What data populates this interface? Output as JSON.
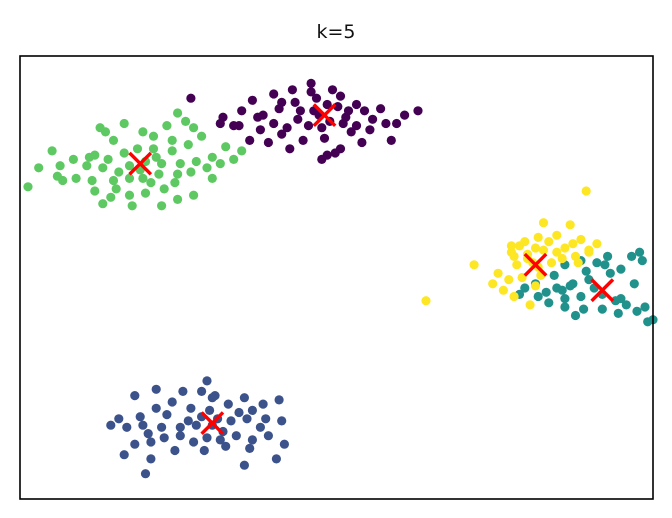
{
  "chart_data": {
    "type": "scatter",
    "title": "k=5",
    "xlabel": "",
    "ylabel": "",
    "xlim": [
      -11.5,
      12.2
    ],
    "ylim": [
      -10.8,
      10.2
    ],
    "grid": false,
    "axis_ticks": false,
    "point_colors": [
      "#440154",
      "#3b528b",
      "#21918c",
      "#5ec962",
      "#fde725"
    ],
    "centroid_marker": "x",
    "centroid_color": "#ff0000",
    "series": [
      {
        "cluster": 0,
        "points": [
          [
            -1.2,
            8.0
          ],
          [
            -0.6,
            8.9
          ],
          [
            0.2,
            8.6
          ],
          [
            0.4,
            7.8
          ],
          [
            -0.3,
            7.4
          ],
          [
            -1.0,
            7.6
          ],
          [
            -1.8,
            7.7
          ],
          [
            -2.4,
            7.4
          ],
          [
            -1.5,
            6.8
          ],
          [
            -0.7,
            6.9
          ],
          [
            0.1,
            7.1
          ],
          [
            0.7,
            7.3
          ],
          [
            1.4,
            7.6
          ],
          [
            2.0,
            7.7
          ],
          [
            2.2,
            7.0
          ],
          [
            1.6,
            6.7
          ],
          [
            0.9,
            6.6
          ],
          [
            -0.1,
            6.3
          ],
          [
            -0.9,
            6.2
          ],
          [
            -1.7,
            6.5
          ],
          [
            -2.5,
            6.7
          ],
          [
            -3.3,
            6.9
          ],
          [
            -3.9,
            7.3
          ],
          [
            -3.2,
            7.6
          ],
          [
            -2.8,
            8.1
          ],
          [
            -2.0,
            8.4
          ],
          [
            -1.3,
            8.6
          ],
          [
            -0.4,
            8.2
          ],
          [
            0.5,
            8.3
          ],
          [
            1.1,
            7.9
          ],
          [
            1.7,
            7.2
          ],
          [
            2.6,
            7.0
          ],
          [
            3.4,
            7.6
          ],
          [
            2.9,
            7.4
          ],
          [
            1.3,
            6.1
          ],
          [
            0.5,
            5.8
          ],
          [
            0.0,
            5.5
          ],
          [
            -0.2,
            5.3
          ],
          [
            0.3,
            5.6
          ],
          [
            -1.4,
            5.8
          ],
          [
            -2.2,
            6.1
          ],
          [
            -2.9,
            6.2
          ],
          [
            -2.0,
            7.0
          ],
          [
            -1.1,
            7.2
          ],
          [
            -0.5,
            7.6
          ],
          [
            0.0,
            7.9
          ],
          [
            0.6,
            7.0
          ],
          [
            1.1,
            6.9
          ],
          [
            -3.5,
            6.9
          ],
          [
            -4.0,
            7.0
          ],
          [
            -5.1,
            8.2
          ],
          [
            -0.6,
            8.5
          ],
          [
            -1.7,
            8.0
          ],
          [
            0.8,
            7.6
          ],
          [
            -2.6,
            7.3
          ],
          [
            2.4,
            6.2
          ],
          [
            -0.2,
            6.8
          ]
        ]
      },
      {
        "cluster": 1,
        "points": [
          [
            -7.2,
            -5.9
          ],
          [
            -6.4,
            -5.6
          ],
          [
            -5.4,
            -5.7
          ],
          [
            -4.7,
            -5.7
          ],
          [
            -4.3,
            -6.0
          ],
          [
            -3.7,
            -6.3
          ],
          [
            -3.1,
            -6.0
          ],
          [
            -2.4,
            -6.3
          ],
          [
            -1.8,
            -6.1
          ],
          [
            -2.8,
            -6.6
          ],
          [
            -4.4,
            -6.6
          ],
          [
            -5.1,
            -6.5
          ],
          [
            -6.0,
            -6.8
          ],
          [
            -7.0,
            -6.9
          ],
          [
            -7.8,
            -7.0
          ],
          [
            -8.1,
            -7.3
          ],
          [
            -7.5,
            -7.4
          ],
          [
            -6.9,
            -7.3
          ],
          [
            -6.2,
            -7.4
          ],
          [
            -5.5,
            -7.4
          ],
          [
            -4.9,
            -7.3
          ],
          [
            -4.3,
            -7.3
          ],
          [
            -3.6,
            -7.1
          ],
          [
            -3.0,
            -7.0
          ],
          [
            -2.3,
            -7.0
          ],
          [
            -1.7,
            -7.1
          ],
          [
            -1.6,
            -8.2
          ],
          [
            -2.2,
            -7.8
          ],
          [
            -2.8,
            -8.0
          ],
          [
            -3.4,
            -7.8
          ],
          [
            -3.9,
            -7.6
          ],
          [
            -4.5,
            -7.9
          ],
          [
            -5.0,
            -8.1
          ],
          [
            -5.5,
            -7.8
          ],
          [
            -6.1,
            -7.9
          ],
          [
            -6.6,
            -8.1
          ],
          [
            -7.2,
            -8.2
          ],
          [
            -7.6,
            -8.7
          ],
          [
            -6.6,
            -8.9
          ],
          [
            -5.7,
            -8.5
          ],
          [
            -4.6,
            -8.5
          ],
          [
            -3.8,
            -8.3
          ],
          [
            -2.9,
            -8.4
          ],
          [
            -1.9,
            -8.9
          ],
          [
            -3.1,
            -9.2
          ],
          [
            -6.8,
            -9.6
          ],
          [
            -4.1,
            -7.0
          ],
          [
            -4.7,
            -6.9
          ],
          [
            -4.0,
            -8.0
          ],
          [
            -5.2,
            -7.1
          ],
          [
            -6.4,
            -6.5
          ],
          [
            -3.3,
            -6.7
          ],
          [
            -2.5,
            -7.4
          ],
          [
            -5.8,
            -6.2
          ],
          [
            -4.2,
            -5.9
          ],
          [
            -6.7,
            -7.7
          ],
          [
            -4.5,
            -5.2
          ]
        ]
      },
      {
        "cluster": 2,
        "points": [
          [
            9.5,
            0.5
          ],
          [
            10.1,
            0.4
          ],
          [
            10.5,
            0.7
          ],
          [
            11.4,
            0.7
          ],
          [
            11.7,
            0.9
          ],
          [
            11.8,
            0.5
          ],
          [
            11.0,
            0.1
          ],
          [
            10.6,
            -0.1
          ],
          [
            9.8,
            -0.4
          ],
          [
            9.2,
            -0.6
          ],
          [
            8.6,
            -0.8
          ],
          [
            8.2,
            -1.0
          ],
          [
            8.9,
            -1.3
          ],
          [
            9.5,
            -1.2
          ],
          [
            10.3,
            -1.1
          ],
          [
            10.8,
            -1.4
          ],
          [
            11.2,
            -1.6
          ],
          [
            11.9,
            -1.7
          ],
          [
            11.6,
            -1.9
          ],
          [
            10.9,
            -2.0
          ],
          [
            10.3,
            -1.8
          ],
          [
            9.6,
            -1.8
          ],
          [
            8.9,
            -1.7
          ],
          [
            8.3,
            -1.5
          ],
          [
            7.9,
            -1.2
          ],
          [
            7.4,
            -0.8
          ],
          [
            7.2,
            -1.1
          ],
          [
            7.8,
            -0.6
          ],
          [
            8.5,
            -0.2
          ],
          [
            8.9,
            0.3
          ],
          [
            9.1,
            -0.7
          ],
          [
            9.7,
            0.0
          ],
          [
            10.0,
            -0.8
          ],
          [
            9.3,
            -2.1
          ],
          [
            11.0,
            -1.3
          ],
          [
            12.0,
            -2.4
          ],
          [
            12.2,
            -2.3
          ],
          [
            11.5,
            -0.6
          ],
          [
            10.4,
            0.3
          ],
          [
            8.8,
            -0.9
          ]
        ]
      },
      {
        "cluster": 3,
        "points": [
          [
            -8.3,
            6.6
          ],
          [
            -7.6,
            7.0
          ],
          [
            -6.9,
            6.6
          ],
          [
            -6.0,
            6.9
          ],
          [
            -5.6,
            7.5
          ],
          [
            -5.3,
            7.1
          ],
          [
            -5.0,
            6.8
          ],
          [
            -4.7,
            6.4
          ],
          [
            -5.2,
            6.0
          ],
          [
            -5.8,
            5.7
          ],
          [
            -6.5,
            5.8
          ],
          [
            -7.1,
            5.8
          ],
          [
            -7.6,
            5.6
          ],
          [
            -8.2,
            5.3
          ],
          [
            -8.9,
            5.4
          ],
          [
            -9.5,
            5.3
          ],
          [
            -10.0,
            5.0
          ],
          [
            -10.8,
            4.9
          ],
          [
            -10.1,
            4.5
          ],
          [
            -9.4,
            4.4
          ],
          [
            -8.8,
            4.3
          ],
          [
            -8.0,
            4.3
          ],
          [
            -7.4,
            4.4
          ],
          [
            -6.9,
            4.4
          ],
          [
            -6.3,
            4.6
          ],
          [
            -5.6,
            4.6
          ],
          [
            -5.1,
            4.7
          ],
          [
            -4.5,
            4.9
          ],
          [
            -4.0,
            5.1
          ],
          [
            -3.5,
            5.3
          ],
          [
            -3.2,
            5.7
          ],
          [
            -3.8,
            5.9
          ],
          [
            -4.3,
            5.4
          ],
          [
            -4.9,
            5.2
          ],
          [
            -5.5,
            5.1
          ],
          [
            -6.2,
            5.1
          ],
          [
            -6.8,
            5.2
          ],
          [
            -7.4,
            5.0
          ],
          [
            -7.8,
            4.7
          ],
          [
            -8.4,
            4.9
          ],
          [
            -9.0,
            5.0
          ],
          [
            -8.7,
            3.8
          ],
          [
            -8.1,
            3.5
          ],
          [
            -7.4,
            3.6
          ],
          [
            -6.8,
            3.7
          ],
          [
            -6.1,
            3.9
          ],
          [
            -5.6,
            3.4
          ],
          [
            -6.2,
            3.1
          ],
          [
            -7.3,
            3.1
          ],
          [
            -8.4,
            3.2
          ],
          [
            -8.7,
            5.5
          ],
          [
            -9.9,
            4.3
          ],
          [
            -11.2,
            4.0
          ],
          [
            -6.6,
            4.2
          ],
          [
            -7.0,
            4.8
          ],
          [
            -8.0,
            6.2
          ],
          [
            -8.5,
            6.8
          ],
          [
            -6.5,
            6.4
          ],
          [
            -5.8,
            6.2
          ],
          [
            -7.9,
            3.9
          ],
          [
            -6.4,
            5.4
          ],
          [
            -4.3,
            4.4
          ],
          [
            -5.0,
            3.6
          ],
          [
            -5.7,
            4.2
          ],
          [
            -10.3,
            5.7
          ]
        ]
      },
      {
        "cluster": 4,
        "points": [
          [
            9.7,
            3.8
          ],
          [
            9.1,
            2.2
          ],
          [
            9.5,
            1.5
          ],
          [
            8.9,
            1.1
          ],
          [
            8.1,
            1.0
          ],
          [
            7.5,
            0.8
          ],
          [
            7.0,
            0.7
          ],
          [
            6.9,
            1.2
          ],
          [
            7.4,
            1.4
          ],
          [
            7.9,
            1.6
          ],
          [
            8.6,
            1.7
          ],
          [
            9.2,
            1.3
          ],
          [
            9.8,
            1.0
          ],
          [
            10.1,
            1.3
          ],
          [
            9.8,
            0.9
          ],
          [
            9.3,
            0.7
          ],
          [
            8.8,
            0.6
          ],
          [
            8.4,
            0.4
          ],
          [
            7.9,
            0.2
          ],
          [
            7.5,
            0.6
          ],
          [
            7.1,
            0.3
          ],
          [
            6.4,
            -0.1
          ],
          [
            6.8,
            -0.4
          ],
          [
            7.3,
            -0.3
          ],
          [
            7.8,
            -0.7
          ],
          [
            7.0,
            -1.2
          ],
          [
            6.6,
            -0.9
          ],
          [
            6.2,
            -0.6
          ],
          [
            5.5,
            0.3
          ],
          [
            3.7,
            -1.4
          ],
          [
            8.1,
            2.3
          ],
          [
            8.6,
            0.9
          ],
          [
            7.8,
            1.1
          ],
          [
            7.2,
            1.2
          ],
          [
            9.4,
            0.4
          ],
          [
            8.3,
            1.4
          ],
          [
            7.7,
            0.4
          ],
          [
            8.0,
            -0.2
          ],
          [
            6.9,
            0.9
          ],
          [
            7.6,
            -1.6
          ]
        ]
      }
    ],
    "centroids": [
      [
        -0.1,
        7.4
      ],
      [
        -4.3,
        -7.2
      ],
      [
        10.3,
        -0.9
      ],
      [
        -7.0,
        5.1
      ],
      [
        7.8,
        0.3
      ]
    ]
  }
}
